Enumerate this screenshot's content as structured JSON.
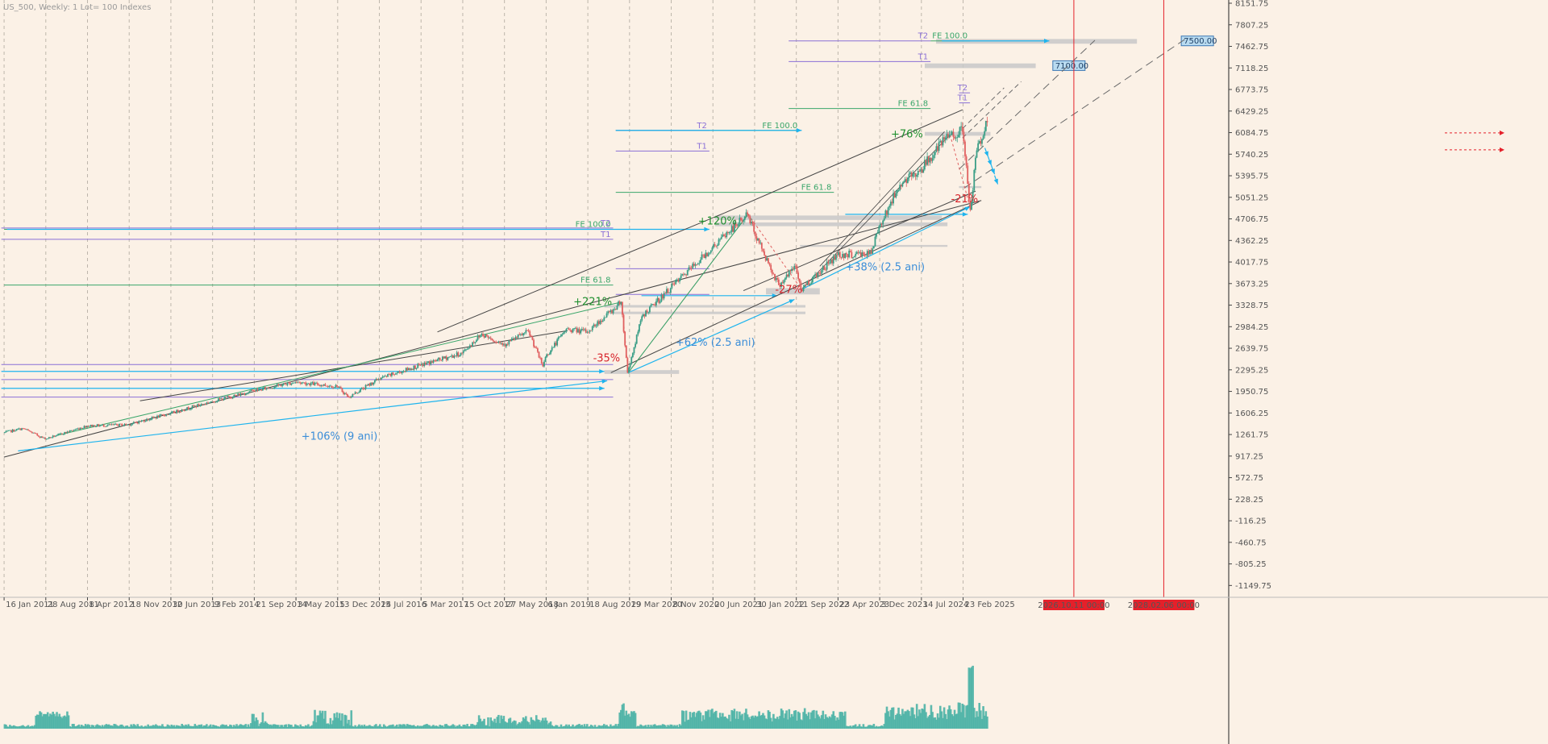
{
  "title": "US_500, Weekly:  1 Lot= 100 Indexes",
  "colors": {
    "background": "#fbf1e6",
    "grid": "#bdb6ab",
    "candle_up": "#3a9e86",
    "candle_down": "#e06060",
    "volume": "#4db3a6",
    "fib_line": "#3aa66a",
    "target_line": "#8a6fd6",
    "projection": "#1eb4ee",
    "trend_line": "#444444",
    "dashed_line": "#6a6a6a",
    "red_vline": "#e5202a",
    "zone": "#c8c8c8",
    "pct_up": "#1f8f2e",
    "pct_down": "#d8242b",
    "pct_blue": "#3c8ed8"
  },
  "chart_data": {
    "type": "line",
    "x_axis_type": "date",
    "xlim": [
      "2010-12-25",
      "2029-01-20"
    ],
    "ylim": [
      -1300,
      8151.75
    ],
    "price_ticks": [
      "8151.75",
      "7807.25",
      "7462.75",
      "7118.25",
      "6773.75",
      "6429.25",
      "6084.75",
      "5740.25",
      "5395.75",
      "5051.25",
      "4706.75",
      "4362.25",
      "4017.75",
      "3673.25",
      "3328.75",
      "2984.25",
      "2639.75",
      "2295.25",
      "1950.75",
      "1606.25",
      "1261.75",
      "917.25",
      "572.75",
      "228.25",
      "-116.25",
      "-460.75",
      "-805.25",
      "-1149.75"
    ],
    "date_ticks": [
      "16 Jan 2011",
      "28 Aug 2011",
      "8 Apr 2012",
      "18 Nov 2012",
      "30 Jun 2013",
      "9 Feb 2014",
      "21 Sep 2014",
      "3 May 2015",
      "13 Dec 2015",
      "24 Jul 2016",
      "5 Mar 2017",
      "15 Oct 2017",
      "27 May 2018",
      "6 Jan 2019",
      "18 Aug 2019",
      "29 Mar 2020",
      "8 Nov 2020",
      "20 Jun 2021",
      "30 Jan 2022",
      "11 Sep 2022",
      "23 Apr 2023",
      "3 Dec 2023",
      "14 Jul 2024",
      "23 Feb 2025"
    ],
    "price_series": {
      "name": "",
      "x": [
        "2011-01-16",
        "2011-05-01",
        "2011-08-28",
        "2011-10-30",
        "2012-04-08",
        "2012-11-18",
        "2013-06-30",
        "2014-02-09",
        "2014-09-21",
        "2015-05-03",
        "2015-12-13",
        "2016-02-14",
        "2016-07-24",
        "2017-03-05",
        "2017-10-15",
        "2018-01-28",
        "2018-05-27",
        "2018-10-07",
        "2018-12-23",
        "2019-01-06",
        "2019-04-28",
        "2019-08-18",
        "2020-01-05",
        "2020-02-16",
        "2020-03-22",
        "2020-06-07",
        "2020-11-08",
        "2021-06-20",
        "2021-12-26",
        "2022-01-30",
        "2022-06-12",
        "2022-09-11",
        "2022-10-09",
        "2023-04-23",
        "2023-10-22",
        "2023-12-03",
        "2024-03-24",
        "2024-07-14",
        "2024-12-15",
        "2025-02-23",
        "2025-04-06",
        "2025-05-11",
        "2025-07-06"
      ],
      "close": [
        1290,
        1360,
        1190,
        1250,
        1400,
        1420,
        1600,
        1790,
        1960,
        2100,
        2030,
        1860,
        2150,
        2370,
        2560,
        2870,
        2700,
        2910,
        2350,
        2500,
        2950,
        2900,
        3260,
        3380,
        2250,
        3150,
        3600,
        4250,
        4780,
        4500,
        3650,
        3950,
        3580,
        4130,
        4150,
        4590,
        5250,
        5500,
        6050,
        6100,
        4850,
        5800,
        6250
      ]
    },
    "annotations": [
      "+221%",
      "-35%",
      "+120%",
      "-27%",
      "+76%",
      "-21%",
      "+106% (9 ani)",
      "+62% (2.5 ani)",
      "+38% (2.5 ani)"
    ],
    "levels": [
      {
        "label": "FE 61.8",
        "value": 3650,
        "x1": "2011-01-16",
        "x2": "2020-01-01",
        "kind": "fib"
      },
      {
        "label": "FE 100.0",
        "value": 4540,
        "x1": "2011-01-16",
        "x2": "2020-01-01",
        "kind": "fib"
      },
      {
        "label": "T1",
        "value": 4380,
        "x1": "2011-01-01",
        "x2": "2020-01-01",
        "kind": "target"
      },
      {
        "label": "T2",
        "value": 4560,
        "x1": "2011-01-01",
        "x2": "2020-01-01",
        "kind": "target"
      },
      {
        "label": "FE 61.8",
        "value": 5130,
        "x1": "2020-01-15",
        "x2": "2023-04-01",
        "kind": "fib"
      },
      {
        "label": "FE 100.0",
        "value": 6120,
        "x1": "2020-01-15",
        "x2": "2022-10-01",
        "kind": "fib"
      },
      {
        "label": "T1",
        "value": 5790,
        "x1": "2020-01-15",
        "x2": "2021-06-01",
        "kind": "target"
      },
      {
        "label": "T2",
        "value": 6120,
        "x1": "2020-01-15",
        "x2": "2021-06-01",
        "kind": "target"
      },
      {
        "label": "FE 61.8",
        "value": 6470,
        "x1": "2022-08-01",
        "x2": "2024-09-01",
        "kind": "fib"
      },
      {
        "label": "FE 100.0",
        "value": 7550,
        "x1": "2024-09-01",
        "x2": "2025-04-01",
        "kind": "fib"
      },
      {
        "label": "T1",
        "value": 7220,
        "x1": "2022-08-01",
        "x2": "2024-09-01",
        "kind": "target"
      },
      {
        "label": "T2",
        "value": 7550,
        "x1": "2022-08-01",
        "x2": "2024-09-01",
        "kind": "target"
      },
      {
        "label": "T2",
        "value": 6720,
        "x1": "2025-02-01",
        "x2": "2025-04-01",
        "kind": "target"
      },
      {
        "label": "T1",
        "value": 6560,
        "x1": "2025-02-01",
        "x2": "2025-04-01",
        "kind": "target"
      }
    ],
    "price_tags": [
      "7500.00",
      "7100.00"
    ],
    "vertical_markers": [
      "2026.10.11 00:00",
      "2028.02.06 00:00"
    ]
  }
}
